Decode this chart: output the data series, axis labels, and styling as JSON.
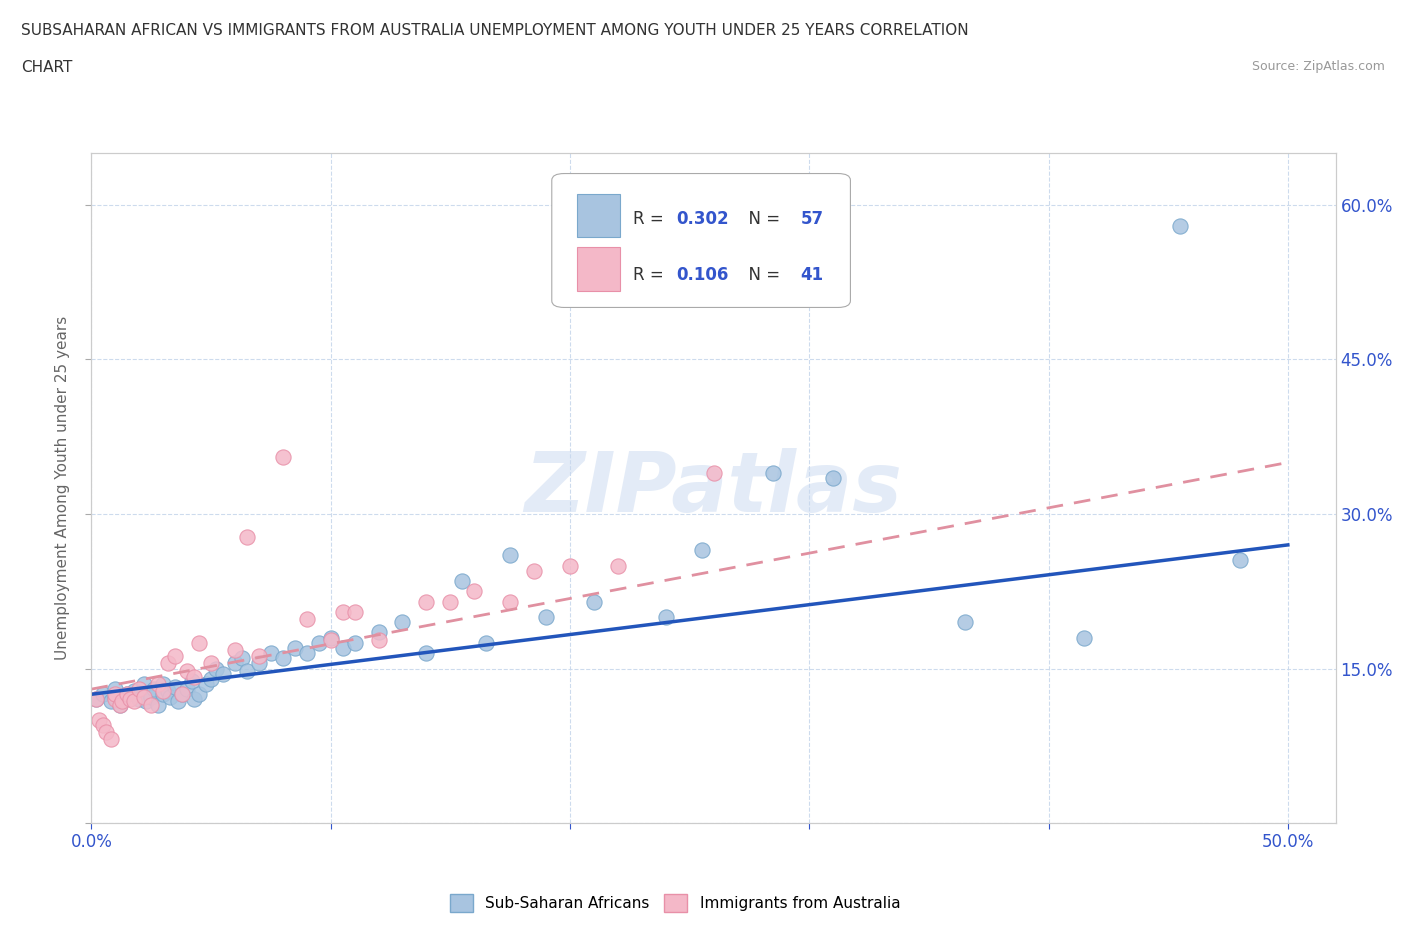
{
  "title_line1": "SUBSAHARAN AFRICAN VS IMMIGRANTS FROM AUSTRALIA UNEMPLOYMENT AMONG YOUTH UNDER 25 YEARS CORRELATION",
  "title_line2": "CHART",
  "source": "Source: ZipAtlas.com",
  "ylabel": "Unemployment Among Youth under 25 years",
  "xlim": [
    0.0,
    0.52
  ],
  "ylim": [
    0.0,
    0.65
  ],
  "xticks": [
    0.0,
    0.1,
    0.2,
    0.3,
    0.4,
    0.5
  ],
  "ytick_values": [
    0.0,
    0.15,
    0.3,
    0.45,
    0.6
  ],
  "right_ytick_labels": [
    "15.0%",
    "30.0%",
    "45.0%",
    "60.0%"
  ],
  "right_ytick_values": [
    0.15,
    0.3,
    0.45,
    0.6
  ],
  "blue_scatter_color": "#a8c4e0",
  "blue_edge_color": "#7aa8cc",
  "pink_scatter_color": "#f4b8c8",
  "pink_edge_color": "#e890a8",
  "blue_line_color": "#2255bb",
  "pink_line_color": "#e090a0",
  "grid_color": "#c8d8ec",
  "watermark_text": "ZIPatlas",
  "R_blue": 0.302,
  "N_blue": 57,
  "R_pink": 0.106,
  "N_pink": 41,
  "blue_scatter_x": [
    0.002,
    0.005,
    0.008,
    0.01,
    0.01,
    0.012,
    0.015,
    0.018,
    0.02,
    0.022,
    0.023,
    0.025,
    0.026,
    0.028,
    0.03,
    0.03,
    0.032,
    0.033,
    0.035,
    0.036,
    0.038,
    0.04,
    0.042,
    0.043,
    0.045,
    0.048,
    0.05,
    0.052,
    0.055,
    0.06,
    0.063,
    0.065,
    0.07,
    0.075,
    0.08,
    0.085,
    0.09,
    0.095,
    0.1,
    0.105,
    0.11,
    0.12,
    0.13,
    0.14,
    0.155,
    0.165,
    0.175,
    0.19,
    0.21,
    0.24,
    0.255,
    0.285,
    0.31,
    0.365,
    0.415,
    0.455,
    0.48
  ],
  "blue_scatter_y": [
    0.12,
    0.125,
    0.118,
    0.122,
    0.13,
    0.115,
    0.125,
    0.128,
    0.12,
    0.135,
    0.118,
    0.122,
    0.13,
    0.115,
    0.125,
    0.135,
    0.128,
    0.122,
    0.132,
    0.118,
    0.125,
    0.13,
    0.138,
    0.12,
    0.125,
    0.135,
    0.14,
    0.15,
    0.145,
    0.155,
    0.16,
    0.148,
    0.155,
    0.165,
    0.16,
    0.17,
    0.165,
    0.175,
    0.18,
    0.17,
    0.175,
    0.185,
    0.195,
    0.165,
    0.235,
    0.175,
    0.26,
    0.2,
    0.215,
    0.2,
    0.265,
    0.34,
    0.335,
    0.195,
    0.18,
    0.58,
    0.255
  ],
  "pink_scatter_x": [
    0.002,
    0.003,
    0.005,
    0.006,
    0.008,
    0.01,
    0.01,
    0.012,
    0.013,
    0.015,
    0.016,
    0.018,
    0.02,
    0.022,
    0.025,
    0.028,
    0.03,
    0.032,
    0.035,
    0.038,
    0.04,
    0.043,
    0.045,
    0.05,
    0.06,
    0.065,
    0.07,
    0.08,
    0.09,
    0.1,
    0.105,
    0.11,
    0.12,
    0.14,
    0.15,
    0.16,
    0.175,
    0.185,
    0.2,
    0.22,
    0.26
  ],
  "pink_scatter_y": [
    0.12,
    0.1,
    0.095,
    0.088,
    0.082,
    0.12,
    0.125,
    0.115,
    0.118,
    0.125,
    0.12,
    0.118,
    0.13,
    0.122,
    0.115,
    0.135,
    0.128,
    0.155,
    0.162,
    0.125,
    0.148,
    0.142,
    0.175,
    0.155,
    0.168,
    0.278,
    0.162,
    0.355,
    0.198,
    0.178,
    0.205,
    0.205,
    0.178,
    0.215,
    0.215,
    0.225,
    0.215,
    0.245,
    0.25,
    0.25,
    0.34
  ],
  "blue_trend_x": [
    0.0,
    0.5
  ],
  "blue_trend_y": [
    0.125,
    0.27
  ],
  "pink_trend_x": [
    0.0,
    0.5
  ],
  "pink_trend_y": [
    0.13,
    0.35
  ],
  "legend_blue_label": "Sub-Saharan Africans",
  "legend_pink_label": "Immigrants from Australia",
  "legend_text_color": "#333333",
  "legend_value_color": "#3355cc",
  "background_color": "#ffffff"
}
